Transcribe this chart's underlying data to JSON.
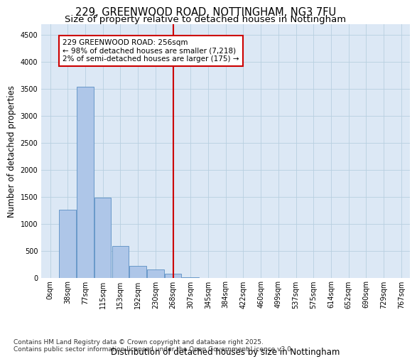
{
  "title": "229, GREENWOOD ROAD, NOTTINGHAM, NG3 7FU",
  "subtitle": "Size of property relative to detached houses in Nottingham",
  "xlabel": "Distribution of detached houses by size in Nottingham",
  "ylabel": "Number of detached properties",
  "bar_labels": [
    "0sqm",
    "38sqm",
    "77sqm",
    "115sqm",
    "153sqm",
    "192sqm",
    "230sqm",
    "268sqm",
    "307sqm",
    "345sqm",
    "384sqm",
    "422sqm",
    "460sqm",
    "499sqm",
    "537sqm",
    "575sqm",
    "614sqm",
    "652sqm",
    "690sqm",
    "729sqm",
    "767sqm"
  ],
  "bar_values": [
    0,
    1270,
    3540,
    1490,
    600,
    230,
    155,
    75,
    10,
    0,
    0,
    0,
    0,
    0,
    0,
    0,
    0,
    0,
    0,
    0,
    0
  ],
  "bar_color": "#aec6e8",
  "bar_edgecolor": "#5a8fc3",
  "ylim": [
    0,
    4700
  ],
  "yticks": [
    0,
    500,
    1000,
    1500,
    2000,
    2500,
    3000,
    3500,
    4000,
    4500
  ],
  "vline_x": 7.0,
  "vline_color": "#cc0000",
  "annotation_text": "229 GREENWOOD ROAD: 256sqm\n← 98% of detached houses are smaller (7,218)\n2% of semi-detached houses are larger (175) →",
  "annotation_box_color": "#ffffff",
  "annotation_box_edgecolor": "#cc0000",
  "bg_color": "#dce8f5",
  "footer": "Contains HM Land Registry data © Crown copyright and database right 2025.\nContains public sector information licensed under the Open Government Licence v3.0.",
  "title_fontsize": 10.5,
  "subtitle_fontsize": 9.5,
  "axis_label_fontsize": 8.5,
  "tick_fontsize": 7,
  "footer_fontsize": 6.5,
  "annotation_fontsize": 7.5
}
